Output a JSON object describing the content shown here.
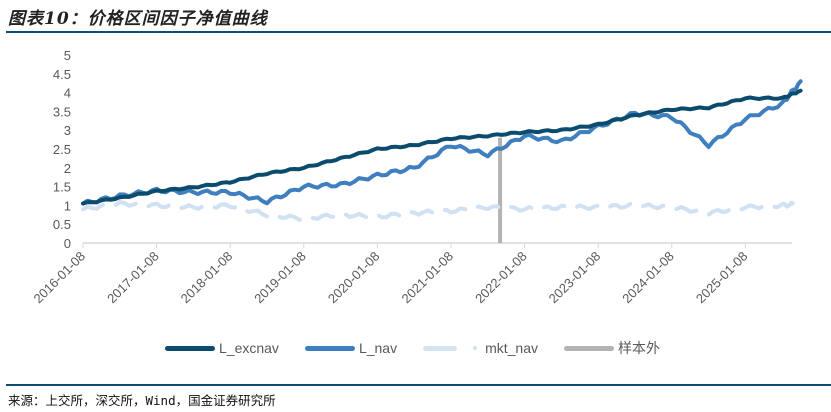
{
  "header": {
    "title": "图表10：价格区间因子净值曲线"
  },
  "footer": {
    "source": "来源：上交所，深交所，Wind，国金证券研究所"
  },
  "legend": {
    "items": [
      {
        "label": "L_excnav",
        "color": "#0b4b6e"
      },
      {
        "label": "L_nav",
        "color": "#3f7fbf"
      },
      {
        "label": "mkt_nav",
        "color": "#cfe1f2"
      },
      {
        "label": "样本外",
        "color": "#b3b3b3"
      }
    ]
  },
  "chart_data": {
    "type": "line",
    "title": "价格区间因子净值曲线",
    "xlabel": "",
    "ylabel": "",
    "ylim": [
      0,
      5
    ],
    "yticks": [
      "0",
      "0.5",
      "1",
      "1.5",
      "2",
      "2.5",
      "3",
      "3.5",
      "4",
      "4.5",
      "5"
    ],
    "xticks": [
      "2016-01-08",
      "2017-01-08",
      "2018-01-08",
      "2019-01-08",
      "2020-01-08",
      "2021-01-08",
      "2022-01-08",
      "2023-01-08",
      "2024-01-08",
      "2025-01-08"
    ],
    "grid": false,
    "legend_position": "bottom",
    "out_of_sample_marker": {
      "label": "样本外",
      "x": "2021-09"
    },
    "x": [
      "2016-01",
      "2016-07",
      "2017-01",
      "2017-07",
      "2018-01",
      "2018-07",
      "2019-01",
      "2019-07",
      "2020-01",
      "2020-07",
      "2021-01",
      "2021-07",
      "2022-01",
      "2022-07",
      "2023-01",
      "2023-07",
      "2024-01",
      "2024-07",
      "2025-01",
      "2025-07",
      "2025-10"
    ],
    "series": [
      {
        "name": "L_excnav",
        "values": [
          1.05,
          1.2,
          1.38,
          1.48,
          1.62,
          1.85,
          2.0,
          2.25,
          2.5,
          2.6,
          2.78,
          2.85,
          2.95,
          3.0,
          3.15,
          3.4,
          3.55,
          3.6,
          3.85,
          3.85,
          4.05
        ]
      },
      {
        "name": "L_nav",
        "values": [
          1.05,
          1.25,
          1.4,
          1.35,
          1.35,
          1.1,
          1.5,
          1.55,
          1.8,
          2.0,
          2.6,
          2.35,
          2.85,
          2.7,
          3.1,
          3.45,
          3.35,
          2.6,
          3.3,
          3.7,
          4.3
        ]
      },
      {
        "name": "mkt_nav",
        "values": [
          0.9,
          1.05,
          1.0,
          0.95,
          1.0,
          0.75,
          0.65,
          0.75,
          0.7,
          0.8,
          0.85,
          0.95,
          0.9,
          0.95,
          0.95,
          1.0,
          0.95,
          0.8,
          0.95,
          1.0,
          1.05
        ]
      },
      {
        "name": "样本外",
        "values": []
      }
    ]
  }
}
